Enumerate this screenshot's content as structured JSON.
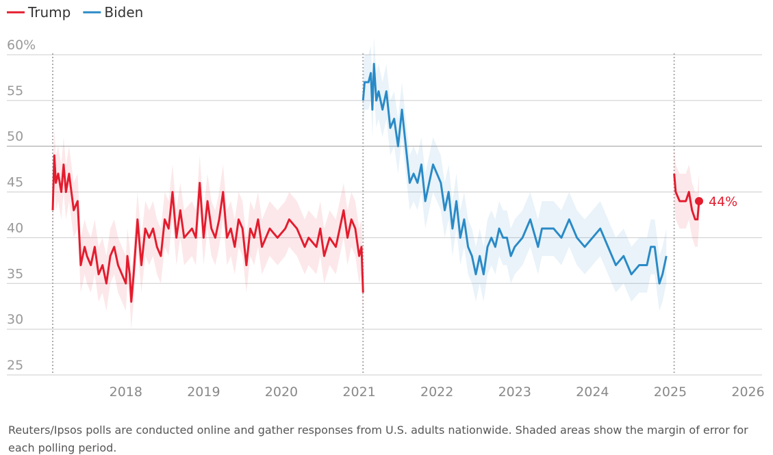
{
  "chart_data": {
    "type": "line",
    "xlim": [
      2016.47,
      2026.18
    ],
    "xticks": [
      2018,
      2019,
      2020,
      2021,
      2022,
      2023,
      2024,
      2025,
      2026
    ],
    "ylim": [
      25,
      60
    ],
    "yticks": [
      25,
      30,
      35,
      40,
      45,
      50,
      {
        "value": 60,
        "label": "60%"
      },
      55
    ],
    "grid": true,
    "vlines": [
      2017.06,
      2021.05,
      2025.05
    ],
    "series": [
      {
        "name": "Trump",
        "color": "#e31c2e",
        "margin_of_error": 3,
        "x": [
          2017.06,
          2017.08,
          2017.1,
          2017.13,
          2017.17,
          2017.2,
          2017.23,
          2017.27,
          2017.33,
          2017.38,
          2017.42,
          2017.47,
          2017.5,
          2017.55,
          2017.6,
          2017.65,
          2017.7,
          2017.75,
          2017.8,
          2017.85,
          2017.9,
          2017.95,
          2018.0,
          2018.02,
          2018.05,
          2018.07,
          2018.1,
          2018.15,
          2018.2,
          2018.25,
          2018.3,
          2018.35,
          2018.4,
          2018.45,
          2018.5,
          2018.55,
          2018.6,
          2018.65,
          2018.7,
          2018.75,
          2018.85,
          2018.9,
          2018.95,
          2019.0,
          2019.05,
          2019.1,
          2019.15,
          2019.2,
          2019.25,
          2019.3,
          2019.35,
          2019.4,
          2019.45,
          2019.5,
          2019.55,
          2019.6,
          2019.65,
          2019.7,
          2019.75,
          2019.8,
          2019.85,
          2019.95,
          2020.05,
          2020.1,
          2020.2,
          2020.25,
          2020.3,
          2020.35,
          2020.45,
          2020.5,
          2020.55,
          2020.62,
          2020.7,
          2020.75,
          2020.8,
          2020.85,
          2020.9,
          2020.95,
          2021.0,
          2021.03,
          2021.05,
          null,
          2025.05,
          2025.07,
          2025.12,
          2025.2,
          2025.24,
          2025.28,
          2025.32,
          2025.35,
          2025.37
        ],
        "values": [
          43,
          49,
          46,
          47,
          45,
          48,
          45,
          47,
          43,
          44,
          37,
          39,
          38,
          37,
          39,
          36,
          37,
          35,
          38,
          39,
          37,
          36,
          35,
          38,
          36,
          33,
          36,
          42,
          37,
          41,
          40,
          41,
          39,
          38,
          42,
          41,
          45,
          40,
          43,
          40,
          41,
          40,
          46,
          40,
          44,
          41,
          40,
          42,
          45,
          40,
          41,
          39,
          42,
          41,
          37,
          41,
          40,
          42,
          39,
          40,
          41,
          40,
          41,
          42,
          41,
          40,
          39,
          40,
          39,
          41,
          38,
          40,
          39,
          41,
          43,
          40,
          42,
          41,
          38,
          39,
          34,
          null,
          47,
          45,
          44,
          44,
          45,
          43,
          42,
          42,
          44
        ]
      },
      {
        "name": "Biden",
        "color": "#2a8ac6",
        "margin_of_error": 3,
        "x": [
          2021.05,
          2021.07,
          2021.12,
          2021.15,
          2021.17,
          2021.19,
          2021.22,
          2021.25,
          2021.3,
          2021.35,
          2021.4,
          2021.45,
          2021.5,
          2021.55,
          2021.6,
          2021.65,
          2021.7,
          2021.75,
          2021.8,
          2021.85,
          2021.95,
          2022.05,
          2022.1,
          2022.15,
          2022.2,
          2022.25,
          2022.3,
          2022.35,
          2022.4,
          2022.45,
          2022.5,
          2022.55,
          2022.6,
          2022.65,
          2022.7,
          2022.75,
          2022.8,
          2022.85,
          2022.9,
          2022.95,
          2023.0,
          2023.1,
          2023.2,
          2023.3,
          2023.35,
          2023.5,
          2023.6,
          2023.7,
          2023.8,
          2023.9,
          2024.0,
          2024.1,
          2024.2,
          2024.3,
          2024.4,
          2024.5,
          2024.6,
          2024.7,
          2024.75,
          2024.8,
          2024.86,
          2024.9,
          2024.95
        ],
        "values": [
          55,
          57,
          57,
          58,
          54,
          59,
          55,
          56,
          54,
          56,
          52,
          53,
          50,
          54,
          50,
          46,
          47,
          46,
          48,
          44,
          48,
          46,
          43,
          45,
          41,
          44,
          40,
          42,
          39,
          38,
          36,
          38,
          36,
          39,
          40,
          39,
          41,
          40,
          40,
          38,
          39,
          40,
          42,
          39,
          41,
          41,
          40,
          42,
          40,
          39,
          40,
          41,
          39,
          37,
          38,
          36,
          37,
          37,
          39,
          39,
          35,
          36,
          38
        ]
      }
    ],
    "annotations": [
      {
        "label": "44%",
        "x": 2025.37,
        "y": 44
      }
    ],
    "note": "Reuters/Ipsos polls are conducted online and gather responses from U.S. adults nationwide. Shaded areas show the margin of error for each polling period."
  }
}
